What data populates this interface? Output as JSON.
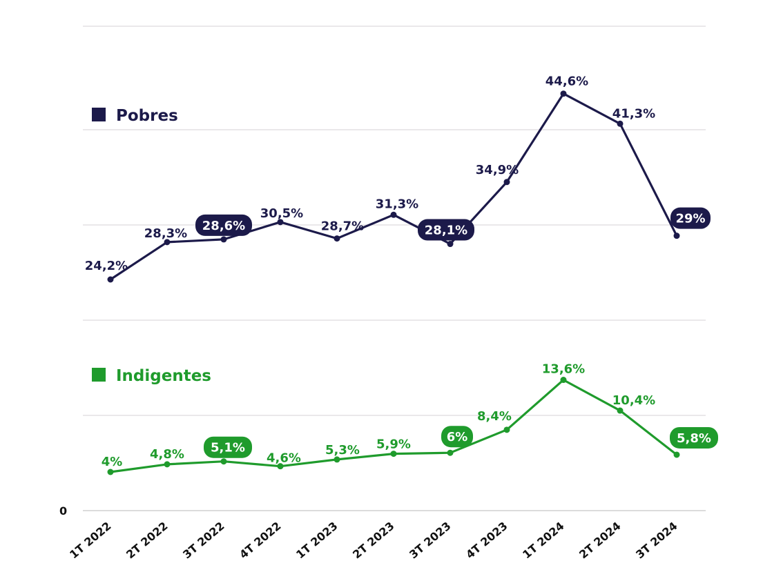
{
  "chart_data": {
    "type": "line",
    "categories": [
      "1T 2022",
      "2T 2022",
      "3T 2022",
      "4T 2022",
      "1T 2023",
      "2T 2023",
      "3T 2023",
      "4T 2023",
      "1T 2024",
      "2T 2024",
      "3T 2024"
    ],
    "zero_label": "0",
    "grid": true,
    "series": [
      {
        "name": "Pobres",
        "color": "#1c1a4a",
        "values": [
          24.2,
          28.3,
          28.6,
          30.5,
          28.7,
          31.3,
          28.1,
          34.9,
          44.6,
          41.3,
          29
        ],
        "labels": [
          "24,2%",
          "28,3%",
          "28,6%",
          "30,5%",
          "28,7%",
          "31,3%",
          "28,1%",
          "34,9%",
          "44,6%",
          "41,3%",
          "29%"
        ],
        "highlighted": [
          2,
          6,
          10
        ]
      },
      {
        "name": "Indigentes",
        "color": "#1f9b2c",
        "values": [
          4,
          4.8,
          5.1,
          4.6,
          5.3,
          5.9,
          6,
          8.4,
          13.6,
          10.4,
          5.8
        ],
        "labels": [
          "4%",
          "4,8%",
          "5,1%",
          "4,6%",
          "5,3%",
          "5,9%",
          "6%",
          "8,4%",
          "13,6%",
          "10,4%",
          "5,8%"
        ],
        "highlighted": [
          2,
          6,
          10
        ]
      }
    ]
  }
}
